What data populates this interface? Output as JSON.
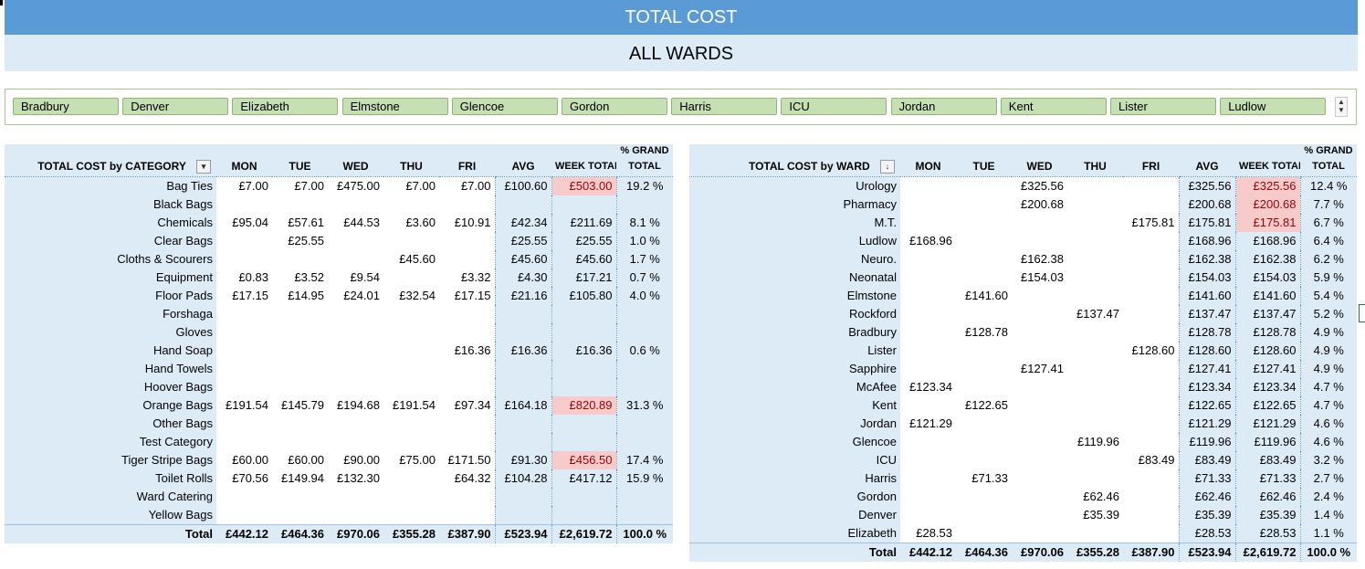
{
  "title": "TOTAL COST",
  "subtitle": "ALL WARDS",
  "slicer": {
    "items": [
      "Bradbury",
      "Denver",
      "Elizabeth",
      "Elmstone",
      "Glencoe",
      "Gordon",
      "Harris",
      "ICU",
      "Jordan",
      "Kent",
      "Lister",
      "Ludlow"
    ]
  },
  "colors": {
    "header_bar": "#5b9bd5",
    "light_fill": "#ddebf7",
    "slicer_fill": "#c6e0b4",
    "highlight": "#f8cbcb"
  },
  "category_table": {
    "header_label": "TOTAL COST by CATEGORY",
    "filter_icon": "filter-dropdown-icon",
    "columns": [
      "MON",
      "TUE",
      "WED",
      "THU",
      "FRI",
      "AVG",
      "WEEK TOTAL"
    ],
    "pct_header_top": "% GRAND",
    "pct_header_bottom": "TOTAL",
    "rows": [
      {
        "label": "Bag Ties",
        "mon": "£7.00",
        "tue": "£7.00",
        "wed": "£475.00",
        "thu": "£7.00",
        "fri": "£7.00",
        "avg": "£100.60",
        "week": "£503.00",
        "pct": "19.2 %",
        "hl": true
      },
      {
        "label": "Black Bags",
        "mon": "",
        "tue": "",
        "wed": "",
        "thu": "",
        "fri": "",
        "avg": "",
        "week": "",
        "pct": "",
        "hl": false
      },
      {
        "label": "Chemicals",
        "mon": "£95.04",
        "tue": "£57.61",
        "wed": "£44.53",
        "thu": "£3.60",
        "fri": "£10.91",
        "avg": "£42.34",
        "week": "£211.69",
        "pct": "8.1 %",
        "hl": false
      },
      {
        "label": "Clear Bags",
        "mon": "",
        "tue": "£25.55",
        "wed": "",
        "thu": "",
        "fri": "",
        "avg": "£25.55",
        "week": "£25.55",
        "pct": "1.0 %",
        "hl": false
      },
      {
        "label": "Cloths & Scourers",
        "mon": "",
        "tue": "",
        "wed": "",
        "thu": "£45.60",
        "fri": "",
        "avg": "£45.60",
        "week": "£45.60",
        "pct": "1.7 %",
        "hl": false
      },
      {
        "label": "Equipment",
        "mon": "£0.83",
        "tue": "£3.52",
        "wed": "£9.54",
        "thu": "",
        "fri": "£3.32",
        "avg": "£4.30",
        "week": "£17.21",
        "pct": "0.7 %",
        "hl": false
      },
      {
        "label": "Floor Pads",
        "mon": "£17.15",
        "tue": "£14.95",
        "wed": "£24.01",
        "thu": "£32.54",
        "fri": "£17.15",
        "avg": "£21.16",
        "week": "£105.80",
        "pct": "4.0 %",
        "hl": false
      },
      {
        "label": "Forshaga",
        "mon": "",
        "tue": "",
        "wed": "",
        "thu": "",
        "fri": "",
        "avg": "",
        "week": "",
        "pct": "",
        "hl": false
      },
      {
        "label": "Gloves",
        "mon": "",
        "tue": "",
        "wed": "",
        "thu": "",
        "fri": "",
        "avg": "",
        "week": "",
        "pct": "",
        "hl": false
      },
      {
        "label": "Hand Soap",
        "mon": "",
        "tue": "",
        "wed": "",
        "thu": "",
        "fri": "£16.36",
        "avg": "£16.36",
        "week": "£16.36",
        "pct": "0.6 %",
        "hl": false
      },
      {
        "label": "Hand Towels",
        "mon": "",
        "tue": "",
        "wed": "",
        "thu": "",
        "fri": "",
        "avg": "",
        "week": "",
        "pct": "",
        "hl": false
      },
      {
        "label": "Hoover Bags",
        "mon": "",
        "tue": "",
        "wed": "",
        "thu": "",
        "fri": "",
        "avg": "",
        "week": "",
        "pct": "",
        "hl": false
      },
      {
        "label": "Orange Bags",
        "mon": "£191.54",
        "tue": "£145.79",
        "wed": "£194.68",
        "thu": "£191.54",
        "fri": "£97.34",
        "avg": "£164.18",
        "week": "£820.89",
        "pct": "31.3 %",
        "hl": true
      },
      {
        "label": "Other Bags",
        "mon": "",
        "tue": "",
        "wed": "",
        "thu": "",
        "fri": "",
        "avg": "",
        "week": "",
        "pct": "",
        "hl": false
      },
      {
        "label": "Test Category",
        "mon": "",
        "tue": "",
        "wed": "",
        "thu": "",
        "fri": "",
        "avg": "",
        "week": "",
        "pct": "",
        "hl": false
      },
      {
        "label": "Tiger Stripe Bags",
        "mon": "£60.00",
        "tue": "£60.00",
        "wed": "£90.00",
        "thu": "£75.00",
        "fri": "£171.50",
        "avg": "£91.30",
        "week": "£456.50",
        "pct": "17.4 %",
        "hl": true
      },
      {
        "label": "Toilet Rolls",
        "mon": "£70.56",
        "tue": "£149.94",
        "wed": "£132.30",
        "thu": "",
        "fri": "£64.32",
        "avg": "£104.28",
        "week": "£417.12",
        "pct": "15.9 %",
        "hl": false
      },
      {
        "label": "Ward Catering",
        "mon": "",
        "tue": "",
        "wed": "",
        "thu": "",
        "fri": "",
        "avg": "",
        "week": "",
        "pct": "",
        "hl": false
      },
      {
        "label": "Yellow Bags",
        "mon": "",
        "tue": "",
        "wed": "",
        "thu": "",
        "fri": "",
        "avg": "",
        "week": "",
        "pct": "",
        "hl": false
      }
    ],
    "total": {
      "label": "Total",
      "mon": "£442.12",
      "tue": "£464.36",
      "wed": "£970.06",
      "thu": "£355.28",
      "fri": "£387.90",
      "avg": "£523.94",
      "week": "£2,619.72",
      "pct": "100.0 %"
    }
  },
  "ward_table": {
    "header_label": "TOTAL COST by WARD",
    "filter_icon": "sort-descending-icon",
    "columns": [
      "MON",
      "TUE",
      "WED",
      "THU",
      "FRI",
      "AVG",
      "WEEK TOTAL"
    ],
    "pct_header_top": "% GRAND",
    "pct_header_bottom": "TOTAL",
    "rows": [
      {
        "label": "Urology",
        "mon": "",
        "tue": "",
        "wed": "£325.56",
        "thu": "",
        "fri": "",
        "avg": "£325.56",
        "week": "£325.56",
        "pct": "12.4 %",
        "hl": true
      },
      {
        "label": "Pharmacy",
        "mon": "",
        "tue": "",
        "wed": "£200.68",
        "thu": "",
        "fri": "",
        "avg": "£200.68",
        "week": "£200.68",
        "pct": "7.7 %",
        "hl": true
      },
      {
        "label": "M.T.",
        "mon": "",
        "tue": "",
        "wed": "",
        "thu": "",
        "fri": "£175.81",
        "avg": "£175.81",
        "week": "£175.81",
        "pct": "6.7 %",
        "hl": true
      },
      {
        "label": "Ludlow",
        "mon": "£168.96",
        "tue": "",
        "wed": "",
        "thu": "",
        "fri": "",
        "avg": "£168.96",
        "week": "£168.96",
        "pct": "6.4 %",
        "hl": false
      },
      {
        "label": "Neuro.",
        "mon": "",
        "tue": "",
        "wed": "£162.38",
        "thu": "",
        "fri": "",
        "avg": "£162.38",
        "week": "£162.38",
        "pct": "6.2 %",
        "hl": false
      },
      {
        "label": "Neonatal",
        "mon": "",
        "tue": "",
        "wed": "£154.03",
        "thu": "",
        "fri": "",
        "avg": "£154.03",
        "week": "£154.03",
        "pct": "5.9 %",
        "hl": false
      },
      {
        "label": "Elmstone",
        "mon": "",
        "tue": "£141.60",
        "wed": "",
        "thu": "",
        "fri": "",
        "avg": "£141.60",
        "week": "£141.60",
        "pct": "5.4 %",
        "hl": false
      },
      {
        "label": "Rockford",
        "mon": "",
        "tue": "",
        "wed": "",
        "thu": "£137.47",
        "fri": "",
        "avg": "£137.47",
        "week": "£137.47",
        "pct": "5.2 %",
        "hl": false
      },
      {
        "label": "Bradbury",
        "mon": "",
        "tue": "£128.78",
        "wed": "",
        "thu": "",
        "fri": "",
        "avg": "£128.78",
        "week": "£128.78",
        "pct": "4.9 %",
        "hl": false
      },
      {
        "label": "Lister",
        "mon": "",
        "tue": "",
        "wed": "",
        "thu": "",
        "fri": "£128.60",
        "avg": "£128.60",
        "week": "£128.60",
        "pct": "4.9 %",
        "hl": false
      },
      {
        "label": "Sapphire",
        "mon": "",
        "tue": "",
        "wed": "£127.41",
        "thu": "",
        "fri": "",
        "avg": "£127.41",
        "week": "£127.41",
        "pct": "4.9 %",
        "hl": false
      },
      {
        "label": "McAfee",
        "mon": "£123.34",
        "tue": "",
        "wed": "",
        "thu": "",
        "fri": "",
        "avg": "£123.34",
        "week": "£123.34",
        "pct": "4.7 %",
        "hl": false
      },
      {
        "label": "Kent",
        "mon": "",
        "tue": "£122.65",
        "wed": "",
        "thu": "",
        "fri": "",
        "avg": "£122.65",
        "week": "£122.65",
        "pct": "4.7 %",
        "hl": false
      },
      {
        "label": "Jordan",
        "mon": "£121.29",
        "tue": "",
        "wed": "",
        "thu": "",
        "fri": "",
        "avg": "£121.29",
        "week": "£121.29",
        "pct": "4.6 %",
        "hl": false
      },
      {
        "label": "Glencoe",
        "mon": "",
        "tue": "",
        "wed": "",
        "thu": "£119.96",
        "fri": "",
        "avg": "£119.96",
        "week": "£119.96",
        "pct": "4.6 %",
        "hl": false
      },
      {
        "label": "ICU",
        "mon": "",
        "tue": "",
        "wed": "",
        "thu": "",
        "fri": "£83.49",
        "avg": "£83.49",
        "week": "£83.49",
        "pct": "3.2 %",
        "hl": false
      },
      {
        "label": "Harris",
        "mon": "",
        "tue": "£71.33",
        "wed": "",
        "thu": "",
        "fri": "",
        "avg": "£71.33",
        "week": "£71.33",
        "pct": "2.7 %",
        "hl": false
      },
      {
        "label": "Gordon",
        "mon": "",
        "tue": "",
        "wed": "",
        "thu": "£62.46",
        "fri": "",
        "avg": "£62.46",
        "week": "£62.46",
        "pct": "2.4 %",
        "hl": false
      },
      {
        "label": "Denver",
        "mon": "",
        "tue": "",
        "wed": "",
        "thu": "£35.39",
        "fri": "",
        "avg": "£35.39",
        "week": "£35.39",
        "pct": "1.4 %",
        "hl": false
      },
      {
        "label": "Elizabeth",
        "mon": "£28.53",
        "tue": "",
        "wed": "",
        "thu": "",
        "fri": "",
        "avg": "£28.53",
        "week": "£28.53",
        "pct": "1.1 %",
        "hl": false
      }
    ],
    "total": {
      "label": "Total",
      "mon": "£442.12",
      "tue": "£464.36",
      "wed": "£970.06",
      "thu": "£355.28",
      "fri": "£387.90",
      "avg": "£523.94",
      "week": "£2,619.72",
      "pct": "100.0 %"
    }
  }
}
